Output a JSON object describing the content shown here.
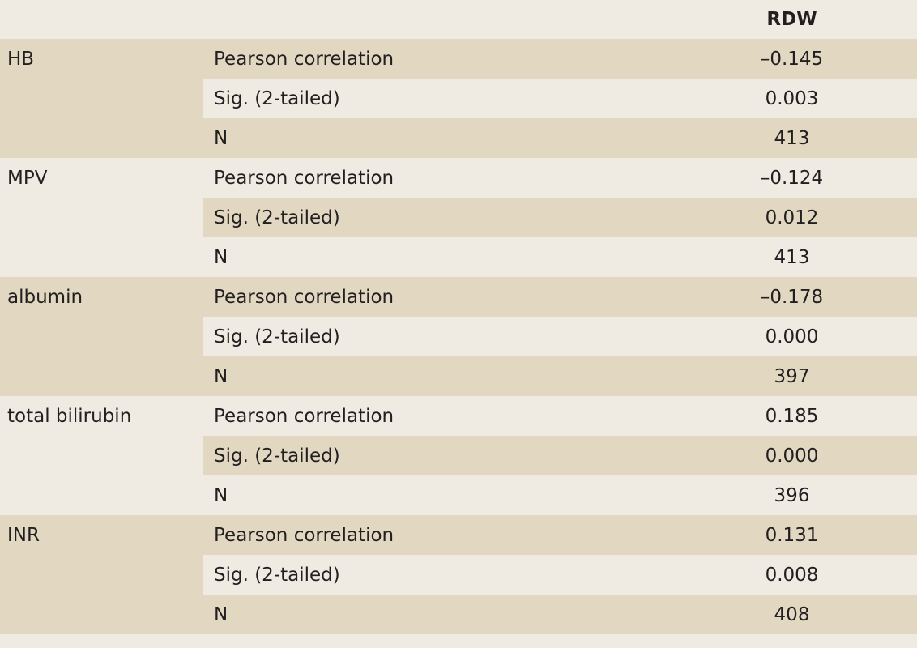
{
  "table": {
    "column_header": "RDW",
    "groups": [
      {
        "name": "HB",
        "rows": [
          {
            "label": "Pearson correlation",
            "value": "–0.145"
          },
          {
            "label": "Sig. (2-tailed)",
            "value": "0.003"
          },
          {
            "label": "N",
            "value": "413"
          }
        ]
      },
      {
        "name": "MPV",
        "rows": [
          {
            "label": "Pearson correlation",
            "value": "–0.124"
          },
          {
            "label": "Sig. (2-tailed)",
            "value": "0.012"
          },
          {
            "label": "N",
            "value": "413"
          }
        ]
      },
      {
        "name": "albumin",
        "rows": [
          {
            "label": "Pearson correlation",
            "value": "–0.178"
          },
          {
            "label": "Sig. (2-tailed)",
            "value": "0.000"
          },
          {
            "label": "N",
            "value": "397"
          }
        ]
      },
      {
        "name": "total bilirubin",
        "rows": [
          {
            "label": "Pearson correlation",
            "value": "0.185"
          },
          {
            "label": "Sig. (2-tailed)",
            "value": "0.000"
          },
          {
            "label": "N",
            "value": "396"
          }
        ]
      },
      {
        "name": "INR",
        "rows": [
          {
            "label": "Pearson correlation",
            "value": "0.131"
          },
          {
            "label": "Sig. (2-tailed)",
            "value": "0.008"
          },
          {
            "label": "N",
            "value": "408"
          }
        ]
      }
    ]
  }
}
